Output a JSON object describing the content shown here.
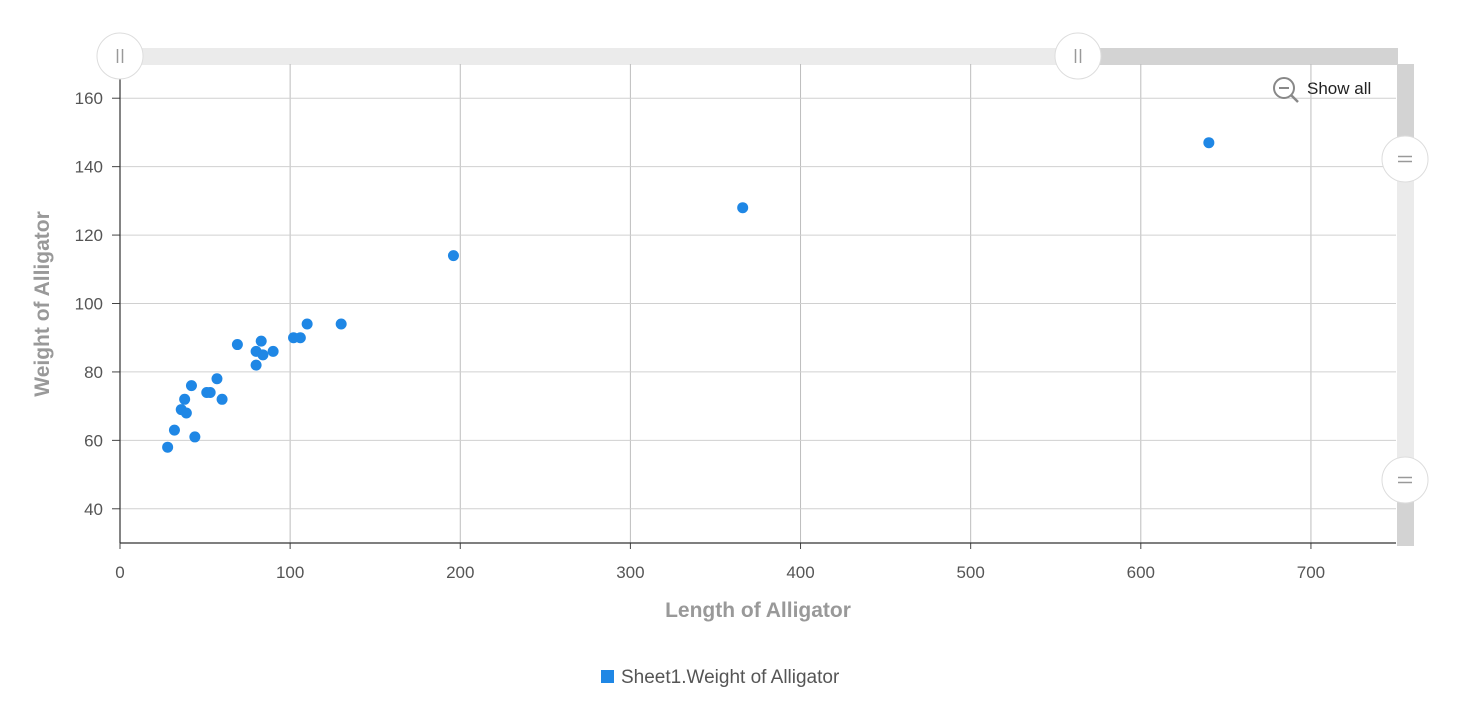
{
  "chart_data": {
    "type": "scatter",
    "xlabel": "Length of Alligator",
    "ylabel": "Weight of Alligator",
    "xlim": [
      0,
      750
    ],
    "ylim": [
      30,
      170
    ],
    "xticks": [
      0,
      100,
      200,
      300,
      400,
      500,
      600,
      700
    ],
    "yticks": [
      40,
      60,
      80,
      100,
      120,
      140,
      160
    ],
    "grid": true,
    "legend_position": "bottom",
    "series": [
      {
        "name": "Sheet1.Weight of Alligator",
        "color": "#1f87e5",
        "points": [
          {
            "x": 28,
            "y": 58
          },
          {
            "x": 32,
            "y": 63
          },
          {
            "x": 36,
            "y": 69
          },
          {
            "x": 38,
            "y": 72
          },
          {
            "x": 39,
            "y": 68
          },
          {
            "x": 42,
            "y": 76
          },
          {
            "x": 44,
            "y": 61
          },
          {
            "x": 51,
            "y": 74
          },
          {
            "x": 53,
            "y": 74
          },
          {
            "x": 57,
            "y": 78
          },
          {
            "x": 60,
            "y": 72
          },
          {
            "x": 69,
            "y": 88
          },
          {
            "x": 80,
            "y": 82
          },
          {
            "x": 80,
            "y": 86
          },
          {
            "x": 83,
            "y": 89
          },
          {
            "x": 84,
            "y": 85
          },
          {
            "x": 90,
            "y": 86
          },
          {
            "x": 102,
            "y": 90
          },
          {
            "x": 106,
            "y": 90
          },
          {
            "x": 110,
            "y": 94
          },
          {
            "x": 130,
            "y": 94
          },
          {
            "x": 196,
            "y": 114
          },
          {
            "x": 366,
            "y": 128
          },
          {
            "x": 640,
            "y": 147
          }
        ]
      }
    ]
  },
  "controls": {
    "show_all_label": "Show all",
    "zoom_out_icon": "zoom-out-icon",
    "scrollbar_color": "#d3d3d3",
    "scrollbar_track_color": "#ebebeb"
  }
}
